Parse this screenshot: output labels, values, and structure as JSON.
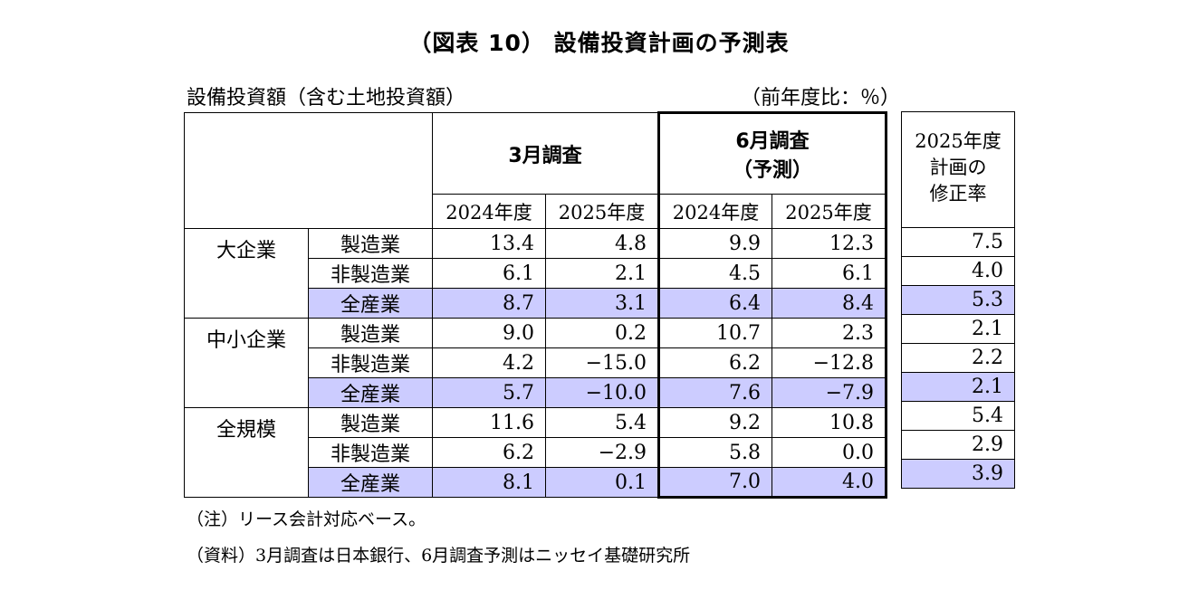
{
  "title": "（図表 10） 設備投資計画の予測表",
  "subtitle": "設備投資額（含む土地投資額）",
  "unit": "（前年度比：％）",
  "headers": {
    "march": "3月調査",
    "june_line1": "6月調査",
    "june_line2": "（予測）",
    "year_2024": "2024年度",
    "year_2025": "2025年度",
    "revision_line1": "2025年度",
    "revision_line2": "計画の",
    "revision_line3": "修正率"
  },
  "colors": {
    "total_highlight": "#ccccff"
  },
  "groups": [
    {
      "name": "大企業",
      "rows": [
        {
          "industry": "製造業",
          "mar2024": "13.4",
          "mar2025": "4.8",
          "jun2024": "9.9",
          "jun2025": "12.3",
          "rev": "7.5"
        },
        {
          "industry": "非製造業",
          "mar2024": "6.1",
          "mar2025": "2.1",
          "jun2024": "4.5",
          "jun2025": "6.1",
          "rev": "4.0"
        },
        {
          "industry": "全産業",
          "mar2024": "8.7",
          "mar2025": "3.1",
          "jun2024": "6.4",
          "jun2025": "8.4",
          "rev": "5.3"
        }
      ]
    },
    {
      "name": "中小企業",
      "rows": [
        {
          "industry": "製造業",
          "mar2024": "9.0",
          "mar2025": "0.2",
          "jun2024": "10.7",
          "jun2025": "2.3",
          "rev": "2.1"
        },
        {
          "industry": "非製造業",
          "mar2024": "4.2",
          "mar2025": "−15.0",
          "jun2024": "6.2",
          "jun2025": "−12.8",
          "rev": "2.2"
        },
        {
          "industry": "全産業",
          "mar2024": "5.7",
          "mar2025": "−10.0",
          "jun2024": "7.6",
          "jun2025": "−7.9",
          "rev": "2.1"
        }
      ]
    },
    {
      "name": "全規模",
      "rows": [
        {
          "industry": "製造業",
          "mar2024": "11.6",
          "mar2025": "5.4",
          "jun2024": "9.2",
          "jun2025": "10.8",
          "rev": "5.4"
        },
        {
          "industry": "非製造業",
          "mar2024": "6.2",
          "mar2025": "−2.9",
          "jun2024": "5.8",
          "jun2025": "0.0",
          "rev": "2.9"
        },
        {
          "industry": "全産業",
          "mar2024": "8.1",
          "mar2025": "0.1",
          "jun2024": "7.0",
          "jun2025": "4.0",
          "rev": "3.9"
        }
      ]
    }
  ],
  "notes": {
    "note1": "（注）リース会計対応ベース。",
    "note2": "（資料）3月調査は日本銀行、6月調査予測はニッセイ基礎研究所"
  }
}
